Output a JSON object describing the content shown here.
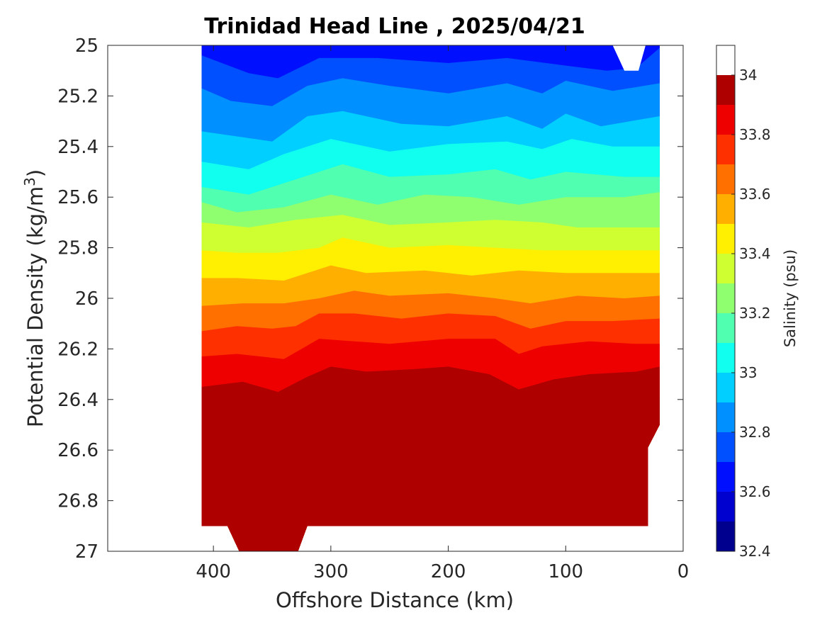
{
  "chart_data": {
    "type": "heatmap",
    "subtype": "filled-contour",
    "title": "Trinidad Head Line , 2025/04/21",
    "xlabel": "Offshore Distance (km)",
    "ylabel_main": "Potential Density (kg/m",
    "ylabel_sup": "3",
    "ylabel_close": ")",
    "xlim": [
      0,
      490
    ],
    "x_reversed": true,
    "ylim": [
      25,
      27
    ],
    "y_reversed": true,
    "xticks": [
      "400",
      "300",
      "200",
      "100",
      "0"
    ],
    "xtick_values": [
      400,
      300,
      200,
      100,
      0
    ],
    "yticks": [
      "25",
      "25.2",
      "25.4",
      "25.6",
      "25.8",
      "26",
      "26.2",
      "26.4",
      "26.6",
      "26.8",
      "27"
    ],
    "ytick_values": [
      25,
      25.2,
      25.4,
      25.6,
      25.8,
      26,
      26.2,
      26.4,
      26.6,
      26.8,
      27
    ],
    "colorbar": {
      "label": "Salinity (psu)",
      "min": 32.4,
      "max": 34.1,
      "step": 0.1,
      "ticks": [
        "32.4",
        "32.6",
        "32.8",
        "33",
        "33.2",
        "33.4",
        "33.6",
        "33.8",
        "34"
      ],
      "tick_values": [
        32.4,
        32.6,
        32.8,
        33.0,
        33.2,
        33.4,
        33.6,
        33.8,
        34.0
      ],
      "colormap": "jet",
      "colors": [
        "#00008f",
        "#0000cf",
        "#0010ff",
        "#0050ff",
        "#0090ff",
        "#00cfff",
        "#10ffef",
        "#50ffaf",
        "#90ff6f",
        "#cfff30",
        "#ffef00",
        "#ffaf00",
        "#ff7000",
        "#ff3000",
        "#ef0000",
        "#af0000"
      ]
    },
    "data_extent_km": [
      20,
      410
    ],
    "contour_boundaries": [
      {
        "level": 32.6,
        "points": [
          [
            410,
            24.99
          ],
          [
            380,
            25.0
          ],
          [
            330,
            24.99
          ],
          [
            200,
            25.0
          ],
          [
            100,
            24.99
          ],
          [
            50,
            25.0
          ],
          [
            20,
            25.0
          ]
        ]
      },
      {
        "level": 32.7,
        "points": [
          [
            410,
            25.04
          ],
          [
            370,
            25.11
          ],
          [
            345,
            25.13
          ],
          [
            310,
            25.05
          ],
          [
            260,
            25.05
          ],
          [
            200,
            25.07
          ],
          [
            150,
            25.05
          ],
          [
            100,
            25.08
          ],
          [
            65,
            25.1
          ],
          [
            40,
            25.09
          ],
          [
            20,
            25.01
          ]
        ]
      },
      {
        "level": 32.8,
        "points": [
          [
            410,
            25.17
          ],
          [
            385,
            25.22
          ],
          [
            350,
            25.24
          ],
          [
            320,
            25.16
          ],
          [
            290,
            25.13
          ],
          [
            250,
            25.16
          ],
          [
            200,
            25.19
          ],
          [
            150,
            25.15
          ],
          [
            120,
            25.19
          ],
          [
            100,
            25.14
          ],
          [
            60,
            25.18
          ],
          [
            20,
            25.15
          ]
        ]
      },
      {
        "level": 32.9,
        "points": [
          [
            410,
            25.34
          ],
          [
            380,
            25.36
          ],
          [
            350,
            25.38
          ],
          [
            320,
            25.28
          ],
          [
            290,
            25.26
          ],
          [
            240,
            25.31
          ],
          [
            200,
            25.32
          ],
          [
            150,
            25.28
          ],
          [
            120,
            25.33
          ],
          [
            100,
            25.27
          ],
          [
            70,
            25.32
          ],
          [
            20,
            25.28
          ]
        ]
      },
      {
        "level": 33.0,
        "points": [
          [
            410,
            25.46
          ],
          [
            370,
            25.49
          ],
          [
            340,
            25.43
          ],
          [
            300,
            25.37
          ],
          [
            250,
            25.42
          ],
          [
            200,
            25.39
          ],
          [
            150,
            25.38
          ],
          [
            120,
            25.41
          ],
          [
            95,
            25.37
          ],
          [
            60,
            25.4
          ],
          [
            20,
            25.4
          ]
        ]
      },
      {
        "level": 33.1,
        "points": [
          [
            410,
            25.56
          ],
          [
            370,
            25.59
          ],
          [
            330,
            25.53
          ],
          [
            290,
            25.47
          ],
          [
            250,
            25.52
          ],
          [
            200,
            25.51
          ],
          [
            160,
            25.49
          ],
          [
            130,
            25.53
          ],
          [
            100,
            25.5
          ],
          [
            50,
            25.52
          ],
          [
            20,
            25.52
          ]
        ]
      },
      {
        "level": 33.2,
        "points": [
          [
            410,
            25.62
          ],
          [
            380,
            25.66
          ],
          [
            340,
            25.64
          ],
          [
            300,
            25.59
          ],
          [
            260,
            25.63
          ],
          [
            220,
            25.59
          ],
          [
            180,
            25.6
          ],
          [
            140,
            25.63
          ],
          [
            100,
            25.6
          ],
          [
            50,
            25.6
          ],
          [
            20,
            25.58
          ]
        ]
      },
      {
        "level": 33.3,
        "points": [
          [
            410,
            25.7
          ],
          [
            370,
            25.72
          ],
          [
            330,
            25.69
          ],
          [
            290,
            25.67
          ],
          [
            250,
            25.71
          ],
          [
            200,
            25.7
          ],
          [
            160,
            25.69
          ],
          [
            120,
            25.7
          ],
          [
            90,
            25.72
          ],
          [
            50,
            25.72
          ],
          [
            20,
            25.72
          ]
        ]
      },
      {
        "level": 33.4,
        "points": [
          [
            410,
            25.81
          ],
          [
            380,
            25.82
          ],
          [
            345,
            25.82
          ],
          [
            310,
            25.8
          ],
          [
            290,
            25.76
          ],
          [
            250,
            25.8
          ],
          [
            200,
            25.79
          ],
          [
            160,
            25.8
          ],
          [
            120,
            25.81
          ],
          [
            80,
            25.81
          ],
          [
            20,
            25.81
          ]
        ]
      },
      {
        "level": 33.5,
        "points": [
          [
            410,
            25.92
          ],
          [
            380,
            25.92
          ],
          [
            340,
            25.93
          ],
          [
            300,
            25.87
          ],
          [
            270,
            25.9
          ],
          [
            220,
            25.89
          ],
          [
            180,
            25.91
          ],
          [
            140,
            25.89
          ],
          [
            100,
            25.9
          ],
          [
            60,
            25.9
          ],
          [
            20,
            25.9
          ]
        ]
      },
      {
        "level": 33.6,
        "points": [
          [
            410,
            26.03
          ],
          [
            375,
            26.02
          ],
          [
            340,
            26.02
          ],
          [
            310,
            26.0
          ],
          [
            280,
            25.97
          ],
          [
            250,
            25.99
          ],
          [
            200,
            25.98
          ],
          [
            160,
            26.0
          ],
          [
            130,
            26.02
          ],
          [
            90,
            25.99
          ],
          [
            50,
            26.0
          ],
          [
            20,
            25.99
          ]
        ]
      },
      {
        "level": 33.7,
        "points": [
          [
            410,
            26.13
          ],
          [
            380,
            26.11
          ],
          [
            350,
            26.12
          ],
          [
            330,
            26.11
          ],
          [
            310,
            26.06
          ],
          [
            280,
            26.06
          ],
          [
            240,
            26.08
          ],
          [
            200,
            26.06
          ],
          [
            160,
            26.07
          ],
          [
            130,
            26.12
          ],
          [
            100,
            26.09
          ],
          [
            60,
            26.09
          ],
          [
            20,
            26.08
          ]
        ]
      },
      {
        "level": 33.8,
        "points": [
          [
            410,
            26.23
          ],
          [
            380,
            26.22
          ],
          [
            340,
            26.24
          ],
          [
            310,
            26.16
          ],
          [
            280,
            26.17
          ],
          [
            250,
            26.18
          ],
          [
            200,
            26.16
          ],
          [
            160,
            26.16
          ],
          [
            140,
            26.22
          ],
          [
            120,
            26.19
          ],
          [
            80,
            26.17
          ],
          [
            40,
            26.18
          ],
          [
            20,
            26.18
          ]
        ]
      },
      {
        "level": 33.9,
        "points": [
          [
            410,
            26.35
          ],
          [
            375,
            26.33
          ],
          [
            345,
            26.37
          ],
          [
            320,
            26.31
          ],
          [
            300,
            26.27
          ],
          [
            270,
            26.29
          ],
          [
            230,
            26.28
          ],
          [
            200,
            26.27
          ],
          [
            165,
            26.3
          ],
          [
            140,
            26.36
          ],
          [
            110,
            26.32
          ],
          [
            80,
            26.3
          ],
          [
            40,
            26.29
          ],
          [
            20,
            26.27
          ]
        ]
      },
      {
        "level": 34.0,
        "points": [
          [
            410,
            26.5
          ],
          [
            395,
            26.5
          ],
          [
            380,
            26.58
          ],
          [
            350,
            26.59
          ],
          [
            330,
            26.56
          ],
          [
            310,
            26.44
          ],
          [
            290,
            26.4
          ],
          [
            270,
            26.47
          ],
          [
            240,
            26.5
          ],
          [
            210,
            26.47
          ],
          [
            180,
            26.47
          ],
          [
            150,
            26.46
          ],
          [
            120,
            26.44
          ],
          [
            90,
            26.4
          ],
          [
            60,
            26.43
          ],
          [
            20,
            26.39
          ]
        ]
      },
      {
        "level": 34.1,
        "points": [
          [
            410,
            26.72
          ],
          [
            380,
            26.8
          ],
          [
            340,
            26.76
          ],
          [
            310,
            26.75
          ],
          [
            300,
            26.73
          ],
          [
            290,
            26.65
          ],
          [
            250,
            26.69
          ],
          [
            200,
            26.71
          ],
          [
            160,
            26.71
          ],
          [
            110,
            26.67
          ],
          [
            70,
            26.66
          ],
          [
            30,
            26.65
          ]
        ]
      }
    ],
    "annotations": []
  }
}
